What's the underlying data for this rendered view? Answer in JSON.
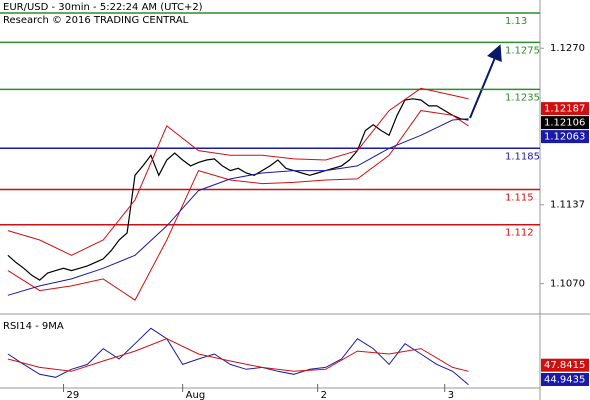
{
  "chart_data": [
    {
      "type": "line",
      "title": "EUR/USD - 30min - 5:22:24 AM (UTC+2)",
      "subtitle": "Research © 2016 TRADING CENTRAL",
      "xlim": [
        -1,
        67
      ],
      "ylim": [
        1.1045,
        1.1311
      ],
      "yticks": [
        {
          "value": 1.127,
          "label": "1.1270"
        },
        1.1137,
        {
          "value": 1.107,
          "label": "1.1070"
        }
      ],
      "levels": [
        {
          "value": 1.13,
          "color": "#2e8b2e"
        },
        {
          "value": 1.1275,
          "color": "#2e8b2e"
        },
        {
          "value": 1.1235,
          "color": "#2e8b2e"
        },
        {
          "value": 1.1185,
          "color": "#1a1aa6"
        },
        {
          "value": 1.115,
          "color": "#d01010"
        },
        {
          "value": 1.112,
          "color": "#d01010"
        }
      ],
      "tags": [
        {
          "value": 1.12187,
          "color": "#d01010"
        },
        {
          "value": 1.12106,
          "color": "#000000"
        },
        {
          "value": 1.12063,
          "color": "#1a1aa6"
        }
      ],
      "series": [
        {
          "color": "#000000",
          "x": [
            0,
            1,
            2,
            3,
            4,
            5,
            6,
            7,
            8,
            9,
            10,
            11,
            12,
            13,
            14,
            15,
            16,
            17,
            18,
            19,
            20,
            21,
            22,
            23,
            24,
            25,
            26,
            27,
            28,
            29,
            30,
            31,
            32,
            33,
            34,
            35,
            36,
            37,
            38,
            39,
            40,
            41,
            42,
            43,
            44,
            45,
            46,
            47,
            48,
            49,
            50,
            51,
            52,
            53,
            54,
            55,
            56,
            57,
            58
          ],
          "values": [
            1.1094,
            1.1088,
            1.1083,
            1.1077,
            1.1073,
            1.1079,
            1.1081,
            1.1083,
            1.1081,
            1.1083,
            1.1085,
            1.1088,
            1.1091,
            1.1098,
            1.1107,
            1.1113,
            1.1162,
            1.117,
            1.1179,
            1.1162,
            1.1175,
            1.1181,
            1.1175,
            1.117,
            1.1173,
            1.1175,
            1.1176,
            1.117,
            1.1166,
            1.1168,
            1.1164,
            1.1162,
            1.1166,
            1.117,
            1.1175,
            1.1168,
            1.1166,
            1.1164,
            1.1162,
            1.1164,
            1.1166,
            1.1168,
            1.117,
            1.1175,
            1.1183,
            1.12,
            1.1205,
            1.12,
            1.1196,
            1.1213,
            1.1226,
            1.1227,
            1.1226,
            1.1221,
            1.1221,
            1.1217,
            1.1213,
            1.121,
            1.1209
          ]
        },
        {
          "color": "#d01010",
          "x": [
            0,
            4,
            8,
            12,
            16,
            20,
            24,
            28,
            32,
            36,
            40,
            44,
            48,
            52,
            56,
            58
          ],
          "values": [
            1.1115,
            1.1107,
            1.1094,
            1.1107,
            1.1141,
            1.1204,
            1.1183,
            1.1179,
            1.1179,
            1.1176,
            1.1175,
            1.1183,
            1.1217,
            1.1236,
            1.123,
            1.1227
          ]
        },
        {
          "color": "#d01010",
          "x": [
            0,
            4,
            8,
            12,
            16,
            20,
            24,
            28,
            32,
            36,
            40,
            44,
            48,
            52,
            56,
            58
          ],
          "values": [
            1.1081,
            1.1064,
            1.1068,
            1.1074,
            1.1056,
            1.1107,
            1.1166,
            1.1158,
            1.1155,
            1.1156,
            1.1158,
            1.1159,
            1.1179,
            1.1217,
            1.1213,
            1.1204
          ]
        },
        {
          "color": "#1a1aa6",
          "x": [
            0,
            4,
            8,
            12,
            16,
            20,
            24,
            28,
            32,
            36,
            40,
            44,
            48,
            52,
            56,
            58
          ],
          "values": [
            1.106,
            1.1068,
            1.1074,
            1.1083,
            1.1094,
            1.1119,
            1.1149,
            1.1159,
            1.1164,
            1.1166,
            1.1166,
            1.117,
            1.1185,
            1.1196,
            1.1209,
            1.121
          ]
        }
      ]
    },
    {
      "type": "line",
      "title": "RSI14 - 9MA",
      "xlim": [
        -1,
        67
      ],
      "ylim": [
        41.2,
        57.8
      ],
      "xticks": [
        {
          "value": 7,
          "label": "29"
        },
        {
          "value": 22,
          "label": "Aug"
        },
        {
          "value": 39,
          "label": "2"
        },
        {
          "value": 55,
          "label": "3"
        }
      ],
      "tags": [
        {
          "value": 47.8415,
          "color": "#d01010"
        },
        {
          "value": 44.9435,
          "color": "#1a1aa6"
        }
      ],
      "series": [
        {
          "color": "#1a1aa6",
          "x": [
            0,
            2,
            4,
            6,
            8,
            10,
            12,
            14,
            16,
            18,
            20,
            22,
            24,
            26,
            28,
            30,
            32,
            34,
            36,
            38,
            40,
            42,
            44,
            46,
            48,
            50,
            52,
            54,
            56,
            58
          ],
          "values": [
            50.1,
            48.0,
            46.0,
            45.4,
            47.0,
            48.0,
            51.2,
            49.1,
            52.2,
            55.3,
            53.2,
            48.0,
            49.1,
            50.1,
            48.0,
            47.0,
            47.4,
            46.6,
            46.0,
            47.0,
            47.4,
            49.1,
            53.2,
            51.2,
            48.0,
            52.2,
            50.1,
            48.0,
            46.6,
            43.9
          ]
        },
        {
          "color": "#d01010",
          "x": [
            0,
            4,
            8,
            12,
            16,
            20,
            24,
            28,
            32,
            36,
            40,
            44,
            48,
            52,
            56,
            58
          ],
          "values": [
            49.1,
            47.4,
            46.6,
            48.7,
            50.7,
            53.2,
            50.1,
            48.7,
            47.4,
            46.6,
            47.0,
            50.7,
            50.1,
            51.2,
            47.4,
            46.6
          ]
        }
      ]
    }
  ]
}
